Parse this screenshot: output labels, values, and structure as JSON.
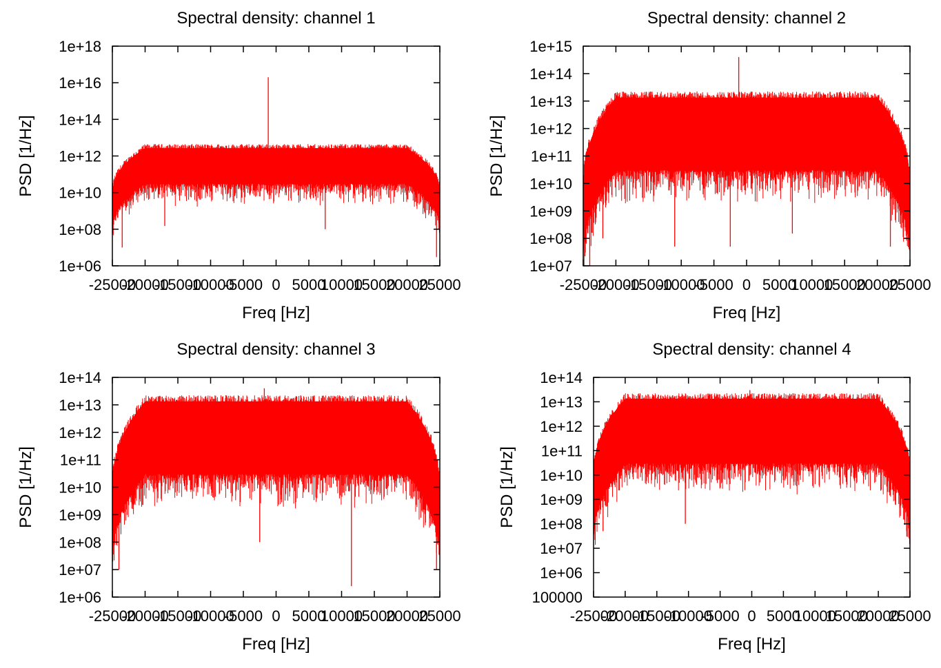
{
  "chart_data": [
    {
      "type": "line",
      "title": "Spectral density: channel 1",
      "xlabel": "Freq [Hz]",
      "ylabel": "PSD [1/Hz]",
      "x_scale": "linear",
      "y_scale": "log",
      "xlim": [
        -25000,
        25000
      ],
      "ylim": [
        1000000.0,
        1e+18
      ],
      "x_ticks": [
        -25000,
        -20000,
        -15000,
        -10000,
        -5000,
        0,
        5000,
        10000,
        15000,
        20000,
        25000
      ],
      "x_tick_labels": [
        "-25000",
        "-20000",
        "-15000",
        "-10000",
        "-5000",
        "0",
        "5000",
        "10000",
        "15000",
        "20000",
        "25000"
      ],
      "y_ticks": [
        1000000.0,
        100000000.0,
        10000000000.0,
        1000000000000.0,
        100000000000000.0,
        1e+16,
        1e+18
      ],
      "y_tick_labels": [
        "1e+06",
        "1e+08",
        "1e+10",
        "1e+12",
        "1e+14",
        "1e+16",
        "1e+18"
      ],
      "grid": false,
      "color": "#ff0000",
      "series": [
        {
          "plateau_upper": 3000000000000.0,
          "envelope_lower": 30000000000.0,
          "band_edges": [
            -20000,
            20000
          ],
          "edge_values": [
            10000000000.0,
            10000000000.0
          ],
          "spikes": [
            {
              "x": -1200,
              "y": 2e+16
            }
          ],
          "dips": [
            {
              "x": -23500,
              "y": 10000000.0
            },
            {
              "x": -17000,
              "y": 150000000.0
            },
            {
              "x": 7500,
              "y": 100000000.0
            },
            {
              "x": 24500,
              "y": 3000000.0
            }
          ]
        }
      ]
    },
    {
      "type": "line",
      "title": "Spectral density: channel 2",
      "xlabel": "Freq [Hz]",
      "ylabel": "PSD [1/Hz]",
      "x_scale": "linear",
      "y_scale": "log",
      "xlim": [
        -25000,
        25000
      ],
      "ylim": [
        10000000.0,
        1000000000000000.0
      ],
      "x_ticks": [
        -25000,
        -20000,
        -15000,
        -10000,
        -5000,
        0,
        5000,
        10000,
        15000,
        20000,
        25000
      ],
      "x_tick_labels": [
        "-25000",
        "-20000",
        "-15000",
        "-10000",
        "-5000",
        "0",
        "5000",
        "10000",
        "15000",
        "20000",
        "25000"
      ],
      "y_ticks": [
        10000000.0,
        100000000.0,
        1000000000.0,
        10000000000.0,
        100000000000.0,
        1000000000000.0,
        10000000000000.0,
        100000000000000.0,
        1000000000000000.0
      ],
      "y_tick_labels": [
        "1e+07",
        "1e+08",
        "1e+09",
        "1e+10",
        "1e+11",
        "1e+12",
        "1e+13",
        "1e+14",
        "1e+15"
      ],
      "grid": false,
      "color": "#ff0000",
      "series": [
        {
          "plateau_upper": 15000000000000.0,
          "envelope_lower": 30000000000.0,
          "band_edges": [
            -20000,
            20000
          ],
          "edge_values": [
            10000000000.0,
            10000000000.0
          ],
          "spikes": [
            {
              "x": -1200,
              "y": 400000000000000.0
            }
          ],
          "dips": [
            {
              "x": -24000,
              "y": 10000000.0
            },
            {
              "x": -22000,
              "y": 100000000.0
            },
            {
              "x": -11000,
              "y": 50000000.0
            },
            {
              "x": -2500,
              "y": 50000000.0
            },
            {
              "x": 7000,
              "y": 150000000.0
            },
            {
              "x": 22000,
              "y": 50000000.0
            }
          ]
        }
      ]
    },
    {
      "type": "line",
      "title": "Spectral density: channel 3",
      "xlabel": "Freq [Hz]",
      "ylabel": "PSD [1/Hz]",
      "x_scale": "linear",
      "y_scale": "log",
      "xlim": [
        -25000,
        25000
      ],
      "ylim": [
        1000000.0,
        100000000000000.0
      ],
      "x_ticks": [
        -25000,
        -20000,
        -15000,
        -10000,
        -5000,
        0,
        5000,
        10000,
        15000,
        20000,
        25000
      ],
      "x_tick_labels": [
        "-25000",
        "-20000",
        "-15000",
        "-10000",
        "-5000",
        "0",
        "5000",
        "10000",
        "15000",
        "20000",
        "25000"
      ],
      "y_ticks": [
        1000000.0,
        10000000.0,
        100000000.0,
        1000000000.0,
        10000000000.0,
        100000000000.0,
        1000000000000.0,
        10000000000000.0,
        100000000000000.0
      ],
      "y_tick_labels": [
        "1e+06",
        "1e+07",
        "1e+08",
        "1e+09",
        "1e+10",
        "1e+11",
        "1e+12",
        "1e+13",
        "1e+14"
      ],
      "grid": false,
      "color": "#ff0000",
      "series": [
        {
          "plateau_upper": 15000000000000.0,
          "envelope_lower": 30000000000.0,
          "band_edges": [
            -20000,
            20000
          ],
          "edge_values": [
            10000000000.0,
            10000000000.0
          ],
          "spikes": [
            {
              "x": -1800,
              "y": 40000000000000.0
            }
          ],
          "dips": [
            {
              "x": -24000,
              "y": 10000000.0
            },
            {
              "x": -2500,
              "y": 100000000.0
            },
            {
              "x": 11500,
              "y": 2500000.0
            },
            {
              "x": 24500,
              "y": 10000000.0
            }
          ]
        }
      ]
    },
    {
      "type": "line",
      "title": "Spectral density: channel 4",
      "xlabel": "Freq [Hz]",
      "ylabel": "PSD [1/Hz]",
      "x_scale": "linear",
      "y_scale": "log",
      "xlim": [
        -25000,
        25000
      ],
      "ylim": [
        100000.0,
        100000000000000.0
      ],
      "x_ticks": [
        -25000,
        -20000,
        -15000,
        -10000,
        -5000,
        0,
        5000,
        10000,
        15000,
        20000,
        25000
      ],
      "x_tick_labels": [
        "-25000",
        "-20000",
        "-15000",
        "-10000",
        "-5000",
        "0",
        "5000",
        "10000",
        "15000",
        "20000",
        "25000"
      ],
      "y_ticks": [
        100000.0,
        1000000.0,
        10000000.0,
        100000000.0,
        1000000000.0,
        10000000000.0,
        100000000000.0,
        1000000000000.0,
        10000000000000.0,
        100000000000000.0
      ],
      "y_tick_labels": [
        "100000",
        "1e+06",
        "1e+07",
        "1e+08",
        "1e+09",
        "1e+10",
        "1e+11",
        "1e+12",
        "1e+13",
        "1e+14"
      ],
      "grid": false,
      "color": "#ff0000",
      "series": [
        {
          "plateau_upper": 15000000000000.0,
          "envelope_lower": 30000000000.0,
          "band_edges": [
            -20000,
            20000
          ],
          "edge_values": [
            10000000000.0,
            10000000000.0
          ],
          "spikes": [
            {
              "x": -300,
              "y": 30000000000000.0
            }
          ],
          "dips": [
            {
              "x": -23500,
              "y": 50000000.0
            },
            {
              "x": -10500,
              "y": 100000000.0
            },
            {
              "x": 24500,
              "y": 30000000.0
            }
          ]
        }
      ]
    }
  ]
}
